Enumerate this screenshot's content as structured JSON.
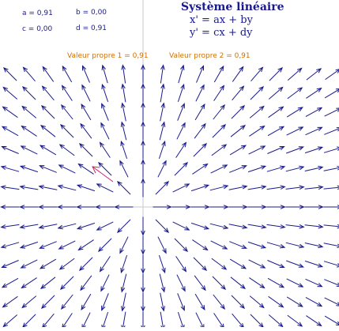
{
  "params": {
    "a": "a = 0,91",
    "b": "b = 0,00",
    "c": "c = 0,00",
    "d": "d = 0,91"
  },
  "title": "Système linéaire",
  "equations": {
    "x": "x' = ax + by",
    "y": "y' = cx + dy"
  },
  "eigenvalues": {
    "v1": "Valeur propre 1 = 0,91",
    "v2": "Valeur propre 2 = 0,91"
  },
  "colors": {
    "arrow": "#1a1a8c",
    "highlight": "#cc2266",
    "axis": "#c8c8c8",
    "eigen_text": "#d07000"
  },
  "system": {
    "a": 0.91,
    "b": 0.0,
    "c": 0.0,
    "d": 0.91
  }
}
